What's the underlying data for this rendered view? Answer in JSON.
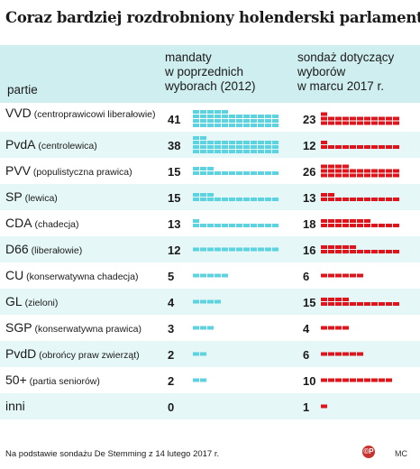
{
  "title": "Coraz bardziej rozdrobniony holenderski parlament",
  "headers": {
    "party": "partie",
    "seats": "mandaty\nw poprzednich\nwyborach (2012)",
    "poll": "sondaż dotyczący\nwyborów\nw marcu 2017 r."
  },
  "footnote": "Na podstawie sondażu De Stemming z 14 lutego 2017 r.",
  "logo": "©P",
  "credit": "MC",
  "colors": {
    "header_bg": "#cfeef0",
    "row_shade": "#e6f7f7",
    "seats_bar": "#5cd3e0",
    "poll_bar": "#e2141b"
  },
  "chart_data": {
    "type": "bar",
    "title": "Coraz bardziej rozdrobniony holenderski parlament",
    "categories": [
      "VVD",
      "PvdA",
      "PVV",
      "SP",
      "CDA",
      "D66",
      "CU",
      "GL",
      "SGP",
      "PvdD",
      "50+",
      "inni"
    ],
    "descriptions": [
      "(centroprawicowi liberałowie)",
      "(centrolewica)",
      "(populistyczna prawica)",
      "(lewica)",
      "(chadecja)",
      "(liberałowie)",
      "(konserwatywna chadecja)",
      "(zieloni)",
      "(konserwatywna prawica)",
      "(obrońcy praw zwierząt)",
      "(partia seniorów)",
      ""
    ],
    "series": [
      {
        "name": "mandaty w poprzednich wyborach (2012)",
        "values": [
          41,
          38,
          15,
          15,
          13,
          12,
          5,
          4,
          3,
          2,
          2,
          0
        ]
      },
      {
        "name": "sondaż dotyczący wyborów w marcu 2017 r.",
        "values": [
          23,
          12,
          26,
          13,
          18,
          16,
          6,
          15,
          4,
          6,
          10,
          1
        ]
      }
    ]
  }
}
